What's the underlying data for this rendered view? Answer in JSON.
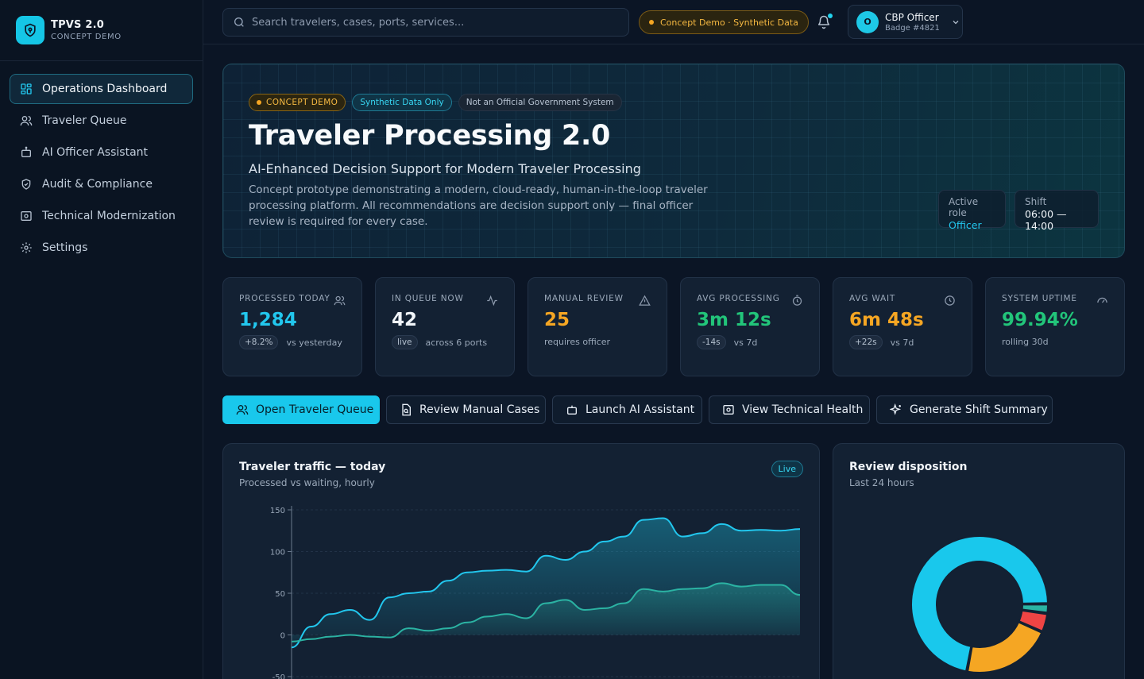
{
  "brand": {
    "title": "TPVS 2.0",
    "subtitle": "CONCEPT DEMO"
  },
  "nav": [
    {
      "label": "Operations Dashboard",
      "icon": "dashboard-icon",
      "active": true
    },
    {
      "label": "Traveler Queue",
      "icon": "users-icon"
    },
    {
      "label": "AI Officer Assistant",
      "icon": "bot-icon"
    },
    {
      "label": "Audit & Compliance",
      "icon": "shield-check-icon"
    },
    {
      "label": "Technical Modernization",
      "icon": "server-icon"
    },
    {
      "label": "Settings",
      "icon": "gear-icon"
    }
  ],
  "topbar": {
    "search_placeholder": "Search travelers, cases, ports, services...",
    "demo_pill": "Concept Demo · Synthetic Data",
    "user": {
      "initial": "O",
      "name": "CBP Officer",
      "badge": "Badge #4821"
    }
  },
  "hero": {
    "badges": {
      "concept": "CONCEPT DEMO",
      "synthetic": "Synthetic Data Only",
      "official": "Not an Official Government System"
    },
    "title": "Traveler Processing 2.0",
    "subtitle": "AI-Enhanced Decision Support for Modern Traveler Processing",
    "description": "Concept prototype demonstrating a modern, cloud-ready, human-in-the-loop traveler processing platform. All recommendations are decision support only — final officer review is required for every case.",
    "role": {
      "label": "Active role",
      "value": "Officer"
    },
    "shift": {
      "label": "Shift",
      "value": "06:00 — 14:00"
    }
  },
  "stats": [
    {
      "label": "PROCESSED TODAY",
      "value": "1,284",
      "chip": "+8.2%",
      "note": "vs yesterday",
      "color": "#22c7ee",
      "icon": "users-icon"
    },
    {
      "label": "IN QUEUE NOW",
      "value": "42",
      "chip": "live",
      "note": "across 6 ports",
      "color": "#f1f5f9",
      "icon": "activity-icon"
    },
    {
      "label": "MANUAL REVIEW",
      "value": "25",
      "chip": "",
      "note": "requires officer",
      "color": "#f5a623",
      "icon": "alert-triangle-icon"
    },
    {
      "label": "AVG PROCESSING",
      "value": "3m 12s",
      "chip": "-14s",
      "note": "vs 7d",
      "color": "#22c57a",
      "icon": "timer-icon"
    },
    {
      "label": "AVG WAIT",
      "value": "6m 48s",
      "chip": "+22s",
      "note": "vs 7d",
      "color": "#f5a623",
      "icon": "clock-icon"
    },
    {
      "label": "SYSTEM UPTIME",
      "value": "99.94%",
      "chip": "",
      "note": "rolling 30d",
      "color": "#22c57a",
      "icon": "gauge-icon"
    }
  ],
  "actions": [
    {
      "label": "Open Traveler Queue",
      "icon": "users-icon",
      "primary": true
    },
    {
      "label": "Review Manual Cases",
      "icon": "file-search-icon"
    },
    {
      "label": "Launch AI Assistant",
      "icon": "bot-icon"
    },
    {
      "label": "View Technical Health",
      "icon": "server-icon"
    },
    {
      "label": "Generate Shift Summary",
      "icon": "sparkles-icon"
    }
  ],
  "traffic_panel": {
    "title": "Traveler traffic — today",
    "subtitle": "Processed vs waiting, hourly",
    "badge": "Live"
  },
  "disposition_panel": {
    "title": "Review disposition",
    "subtitle": "Last 24 hours"
  },
  "colors": {
    "accent": "#19c8ec",
    "warning": "#f5a623",
    "success": "#22c57a",
    "danger": "#ef4444",
    "teal": "#2bb3a3"
  },
  "chart_data": [
    {
      "type": "area",
      "title": "Traveler traffic — today",
      "subtitle": "Processed vs waiting, hourly",
      "ylim": [
        -50,
        150
      ],
      "yticks": [
        150,
        100,
        50,
        0,
        -50
      ],
      "series": [
        {
          "values": [
            -15,
            10,
            25,
            30,
            18,
            45,
            50,
            52,
            65,
            75,
            77,
            78,
            76,
            95,
            90,
            100,
            112,
            118,
            138,
            140,
            118,
            122,
            133,
            125,
            126,
            125,
            127
          ]
        },
        {
          "values": [
            -8,
            -5,
            -2,
            0,
            -2,
            -3,
            8,
            5,
            8,
            15,
            22,
            25,
            20,
            38,
            42,
            30,
            32,
            38,
            55,
            52,
            55,
            56,
            62,
            58,
            60,
            60,
            48
          ]
        }
      ]
    },
    {
      "type": "pie",
      "title": "Review disposition",
      "subtitle": "Last 24 hours",
      "values": [
        64,
        19,
        4,
        2
      ],
      "colors": [
        "#19c8ec",
        "#f5a623",
        "#ef4444",
        "#2bb3a3"
      ]
    }
  ]
}
